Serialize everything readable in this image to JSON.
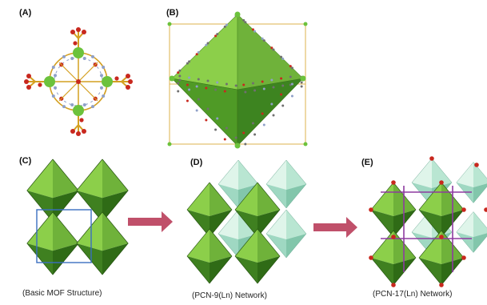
{
  "panels": {
    "a": {
      "label": "(A)"
    },
    "b": {
      "label": "(B)"
    },
    "c": {
      "label": "(C)",
      "caption": "(Basic MOF Structure)"
    },
    "d": {
      "label": "(D)",
      "caption": "(PCN-9(Ln) Network)"
    },
    "e": {
      "label": "(E)",
      "caption": "(PCN-17(Ln) Network)"
    }
  },
  "colors": {
    "octa_dark": "#2f6b16",
    "octa_light": "#8ccf4a",
    "octa_mid": "#5aa22c",
    "mint_light": "#cdeee0",
    "mint_mid": "#9fd8c2",
    "arrow": "#c0506a",
    "unit_cell": "#3a6ec0",
    "oxygen": "#c8281e",
    "metal": "#6cc23c",
    "bond": "#d4a020",
    "nitrogen": "#8fa0c8",
    "linker": "#8e3aa0"
  }
}
